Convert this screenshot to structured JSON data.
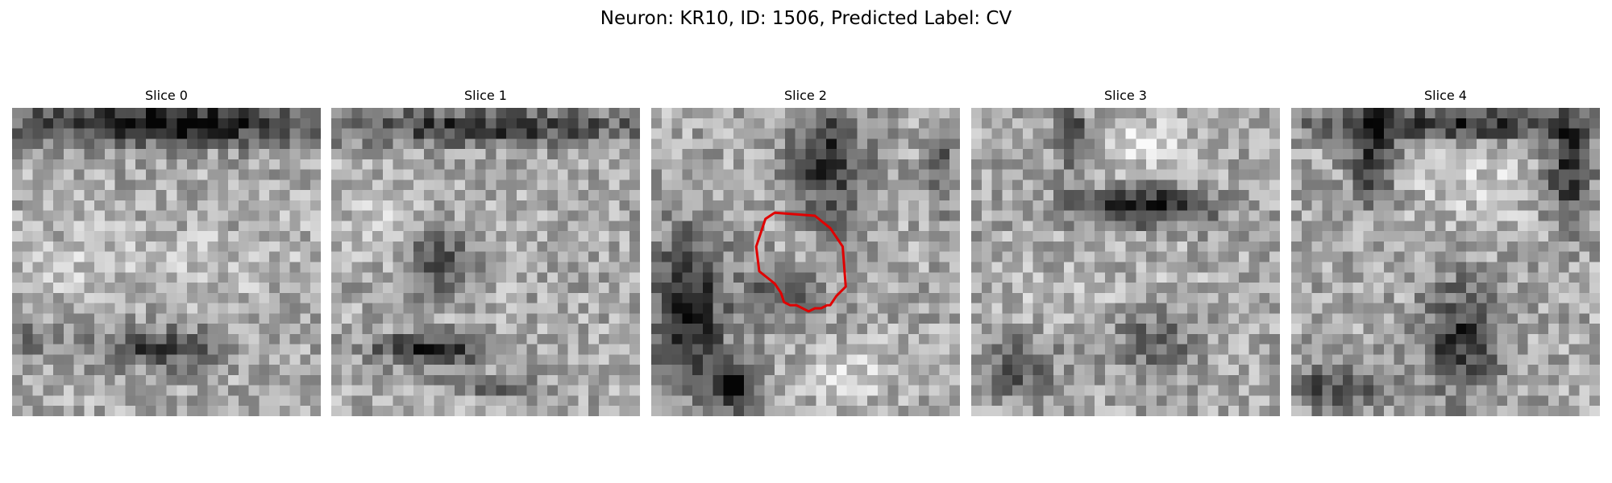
{
  "figure": {
    "title": "Neuron: KR10, ID: 1506, Predicted Label: CV"
  },
  "panels": [
    {
      "title": "Slice 0",
      "seed": 11,
      "dark_features": [
        [
          0.5,
          0.05,
          0.55,
          0.07,
          0.6
        ],
        [
          0.47,
          0.78,
          0.2,
          0.06,
          0.45
        ],
        [
          0.02,
          0.75,
          0.15,
          0.05,
          0.25
        ]
      ],
      "bright_features": [
        [
          0.45,
          0.5,
          0.6,
          0.12,
          0.1
        ]
      ],
      "has_contour": false
    },
    {
      "title": "Slice 1",
      "seed": 23,
      "dark_features": [
        [
          0.5,
          0.06,
          0.55,
          0.06,
          0.45
        ],
        [
          0.33,
          0.78,
          0.2,
          0.05,
          0.5
        ],
        [
          0.35,
          0.5,
          0.1,
          0.1,
          0.35
        ],
        [
          0.52,
          0.9,
          0.15,
          0.03,
          0.35
        ]
      ],
      "bright_features": [
        [
          0.15,
          0.35,
          0.15,
          0.12,
          0.12
        ]
      ],
      "has_contour": false
    },
    {
      "title": "Slice 2",
      "seed": 37,
      "dark_features": [
        [
          0.12,
          0.65,
          0.12,
          0.25,
          0.55
        ],
        [
          0.27,
          0.9,
          0.08,
          0.08,
          0.65
        ],
        [
          0.58,
          0.18,
          0.12,
          0.2,
          0.45
        ],
        [
          0.43,
          0.6,
          0.12,
          0.1,
          0.35
        ],
        [
          0.95,
          0.2,
          0.05,
          0.15,
          0.25
        ]
      ],
      "bright_features": [
        [
          0.65,
          0.85,
          0.15,
          0.08,
          0.18
        ],
        [
          0.5,
          0.48,
          0.08,
          0.08,
          0.12
        ]
      ],
      "has_contour": true
    },
    {
      "title": "Slice 3",
      "seed": 51,
      "dark_features": [
        [
          0.55,
          0.32,
          0.22,
          0.06,
          0.6
        ],
        [
          0.33,
          0.1,
          0.05,
          0.1,
          0.45
        ],
        [
          0.15,
          0.85,
          0.12,
          0.1,
          0.35
        ],
        [
          0.6,
          0.75,
          0.15,
          0.12,
          0.25
        ]
      ],
      "bright_features": [
        [
          0.55,
          0.12,
          0.15,
          0.1,
          0.18
        ],
        [
          0.45,
          0.6,
          0.5,
          0.1,
          0.06
        ]
      ],
      "has_contour": false
    },
    {
      "title": "Slice 4",
      "seed": 67,
      "dark_features": [
        [
          0.5,
          0.05,
          0.45,
          0.05,
          0.5
        ],
        [
          0.26,
          0.15,
          0.07,
          0.15,
          0.5
        ],
        [
          0.9,
          0.2,
          0.07,
          0.18,
          0.5
        ],
        [
          0.55,
          0.75,
          0.12,
          0.18,
          0.45
        ],
        [
          0.15,
          0.9,
          0.18,
          0.08,
          0.35
        ]
      ],
      "bright_features": [
        [
          0.6,
          0.25,
          0.2,
          0.1,
          0.15
        ]
      ],
      "has_contour": false
    }
  ],
  "contour_polygon": [
    [
      0.37,
      0.36
    ],
    [
      0.4,
      0.34
    ],
    [
      0.53,
      0.35
    ],
    [
      0.58,
      0.39
    ],
    [
      0.62,
      0.45
    ],
    [
      0.63,
      0.58
    ],
    [
      0.6,
      0.61
    ],
    [
      0.58,
      0.64
    ],
    [
      0.57,
      0.64
    ],
    [
      0.55,
      0.65
    ],
    [
      0.53,
      0.65
    ],
    [
      0.51,
      0.66
    ],
    [
      0.47,
      0.64
    ],
    [
      0.45,
      0.64
    ],
    [
      0.43,
      0.63
    ],
    [
      0.42,
      0.6
    ],
    [
      0.4,
      0.57
    ],
    [
      0.35,
      0.53
    ],
    [
      0.34,
      0.45
    ]
  ],
  "image_style": {
    "grid_size": 30,
    "contour_color": "#e00000",
    "colormap": "gray"
  }
}
